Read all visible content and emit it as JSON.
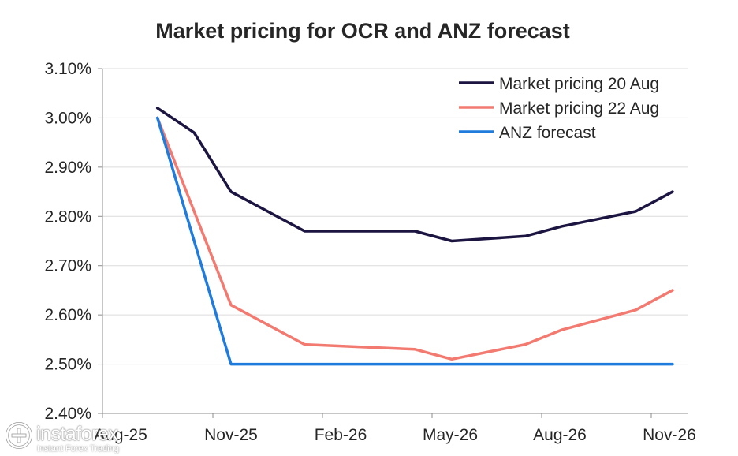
{
  "chart_data": {
    "type": "line",
    "title": "Market pricing for OCR and ANZ forecast",
    "x_ticks": [
      "Aug-25",
      "Nov-25",
      "Feb-26",
      "May-26",
      "Aug-26",
      "Nov-26"
    ],
    "y_ticks": [
      "2.40%",
      "2.50%",
      "2.60%",
      "2.70%",
      "2.80%",
      "2.90%",
      "3.00%",
      "3.10%"
    ],
    "ylim": [
      2.4,
      3.1
    ],
    "grid": true,
    "legend_position": "top-right",
    "x": [
      "Sep-25",
      "Oct-25",
      "Nov-25",
      "Jan-26",
      "Apr-26",
      "May-26",
      "Jul-26",
      "Aug-26",
      "Oct-26",
      "Nov-26"
    ],
    "series": [
      {
        "name": "Market pricing 20 Aug",
        "color": "#1c1541",
        "values": [
          3.02,
          2.97,
          2.85,
          2.77,
          2.77,
          2.75,
          2.76,
          2.78,
          2.81,
          2.85
        ]
      },
      {
        "name": "Market pricing 22 Aug",
        "color": "#f27a70",
        "values": [
          3.0,
          2.81,
          2.62,
          2.54,
          2.53,
          2.51,
          2.54,
          2.57,
          2.61,
          2.65
        ]
      },
      {
        "name": "ANZ forecast",
        "color": "#1f7bdc",
        "values": [
          3.0,
          2.75,
          2.5,
          2.5,
          2.5,
          2.5,
          2.5,
          2.5,
          2.5,
          2.5
        ]
      }
    ]
  },
  "watermark": {
    "name": "instaforex",
    "tagline": "Instant Forex Trading",
    "icon": "instaforex-logo-icon"
  }
}
